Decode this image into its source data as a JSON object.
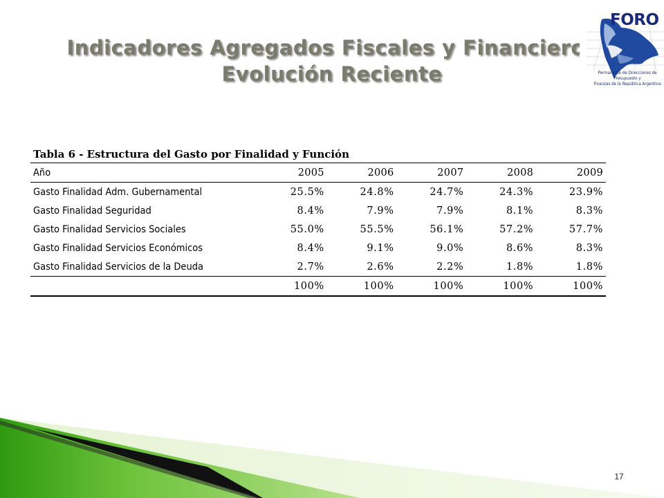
{
  "slide": {
    "title_line1": "Indicadores Agregados Fiscales y Financieros",
    "title_line2": "Evolución Reciente",
    "page_number": "17"
  },
  "logo": {
    "word": "FORO",
    "caption_line1": "Permanente de Direcciones de Presupuesto y",
    "caption_line2": "Finanzas de la República Argentina"
  },
  "table": {
    "caption": "Tabla 6 - Estructura del Gasto por Finalidad y Función",
    "header_label": "Año",
    "years": [
      "2005",
      "2006",
      "2007",
      "2008",
      "2009"
    ],
    "rows": [
      {
        "label": "Gasto Finalidad Adm. Gubernamental",
        "values": [
          "25.5%",
          "24.8%",
          "24.7%",
          "24.3%",
          "23.9%"
        ]
      },
      {
        "label": "Gasto Finalidad Seguridad",
        "values": [
          "8.4%",
          "7.9%",
          "7.9%",
          "8.1%",
          "8.3%"
        ]
      },
      {
        "label": "Gasto Finalidad Servicios Sociales",
        "values": [
          "55.0%",
          "55.5%",
          "56.1%",
          "57.2%",
          "57.7%"
        ]
      },
      {
        "label": "Gasto Finalidad Servicios  Económicos",
        "values": [
          "8.4%",
          "9.1%",
          "9.0%",
          "8.6%",
          "8.3%"
        ]
      },
      {
        "label": "Gasto Finalidad Servicios de la  Deuda",
        "values": [
          "2.7%",
          "2.6%",
          "2.2%",
          "1.8%",
          "1.8%"
        ]
      }
    ],
    "total_label": "",
    "totals": [
      "100%",
      "100%",
      "100%",
      "100%",
      "100%"
    ]
  },
  "colors": {
    "title": "#7a7b6c",
    "logo_blue": "#1a2a7a",
    "deco_green": "#4aa818",
    "deco_light_green": "#d6ecb8"
  }
}
